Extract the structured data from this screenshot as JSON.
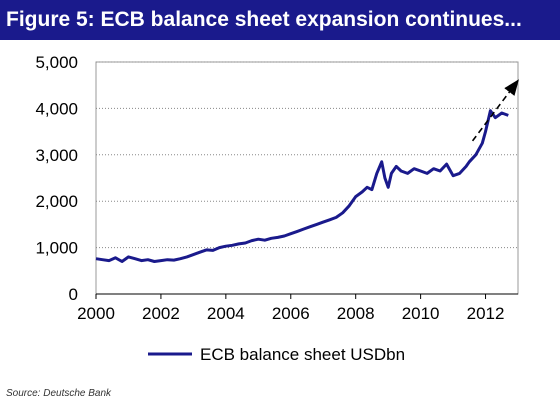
{
  "figure": {
    "title": "Figure 5: ECB balance sheet expansion continues...",
    "source": "Source: Deutsche Bank"
  },
  "colors": {
    "title_bar": "#1a1a8c",
    "series": "#1a1a8c",
    "arrow": "#000000",
    "grid": "#888888"
  },
  "chart_data": {
    "type": "line",
    "title": "Figure 5: ECB balance sheet expansion continues...",
    "xlabel": "",
    "ylabel": "",
    "xlim": [
      2000,
      2013
    ],
    "ylim": [
      0,
      5000
    ],
    "x_ticks": [
      "2000",
      "2002",
      "2004",
      "2006",
      "2008",
      "2010",
      "2012"
    ],
    "y_ticks": [
      "0",
      "1,000",
      "2,000",
      "3,000",
      "4,000",
      "5,000"
    ],
    "grid": "horizontal dotted",
    "legend_position": "bottom-center",
    "annotation": "dashed upward trend arrow",
    "series": [
      {
        "name": "ECB balance sheet USDbn",
        "x": [
          2000.0,
          2000.2,
          2000.4,
          2000.6,
          2000.8,
          2001.0,
          2001.2,
          2001.4,
          2001.6,
          2001.8,
          2002.0,
          2002.2,
          2002.4,
          2002.6,
          2002.8,
          2003.0,
          2003.2,
          2003.4,
          2003.6,
          2003.8,
          2004.0,
          2004.2,
          2004.4,
          2004.6,
          2004.8,
          2005.0,
          2005.2,
          2005.4,
          2005.6,
          2005.8,
          2006.0,
          2006.2,
          2006.4,
          2006.6,
          2006.8,
          2007.0,
          2007.2,
          2007.4,
          2007.6,
          2007.8,
          2008.0,
          2008.2,
          2008.35,
          2008.5,
          2008.65,
          2008.8,
          2008.9,
          2009.0,
          2009.1,
          2009.25,
          2009.4,
          2009.6,
          2009.8,
          2010.0,
          2010.2,
          2010.4,
          2010.6,
          2010.8,
          2011.0,
          2011.2,
          2011.4,
          2011.5,
          2011.7,
          2011.9,
          2012.0,
          2012.15,
          2012.3,
          2012.5,
          2012.7
        ],
        "y": [
          760,
          740,
          720,
          780,
          700,
          800,
          760,
          720,
          740,
          700,
          720,
          740,
          730,
          760,
          800,
          850,
          900,
          950,
          940,
          1000,
          1030,
          1050,
          1080,
          1100,
          1150,
          1180,
          1160,
          1200,
          1220,
          1250,
          1300,
          1350,
          1400,
          1450,
          1500,
          1550,
          1600,
          1650,
          1750,
          1900,
          2100,
          2200,
          2300,
          2250,
          2600,
          2850,
          2500,
          2300,
          2600,
          2750,
          2650,
          2600,
          2700,
          2650,
          2600,
          2700,
          2650,
          2800,
          2550,
          2600,
          2750,
          2850,
          3000,
          3250,
          3500,
          3950,
          3800,
          3900,
          3850
        ]
      }
    ],
    "arrow": {
      "from": [
        2011.6,
        3300
      ],
      "to": [
        2013.0,
        4600
      ]
    }
  }
}
